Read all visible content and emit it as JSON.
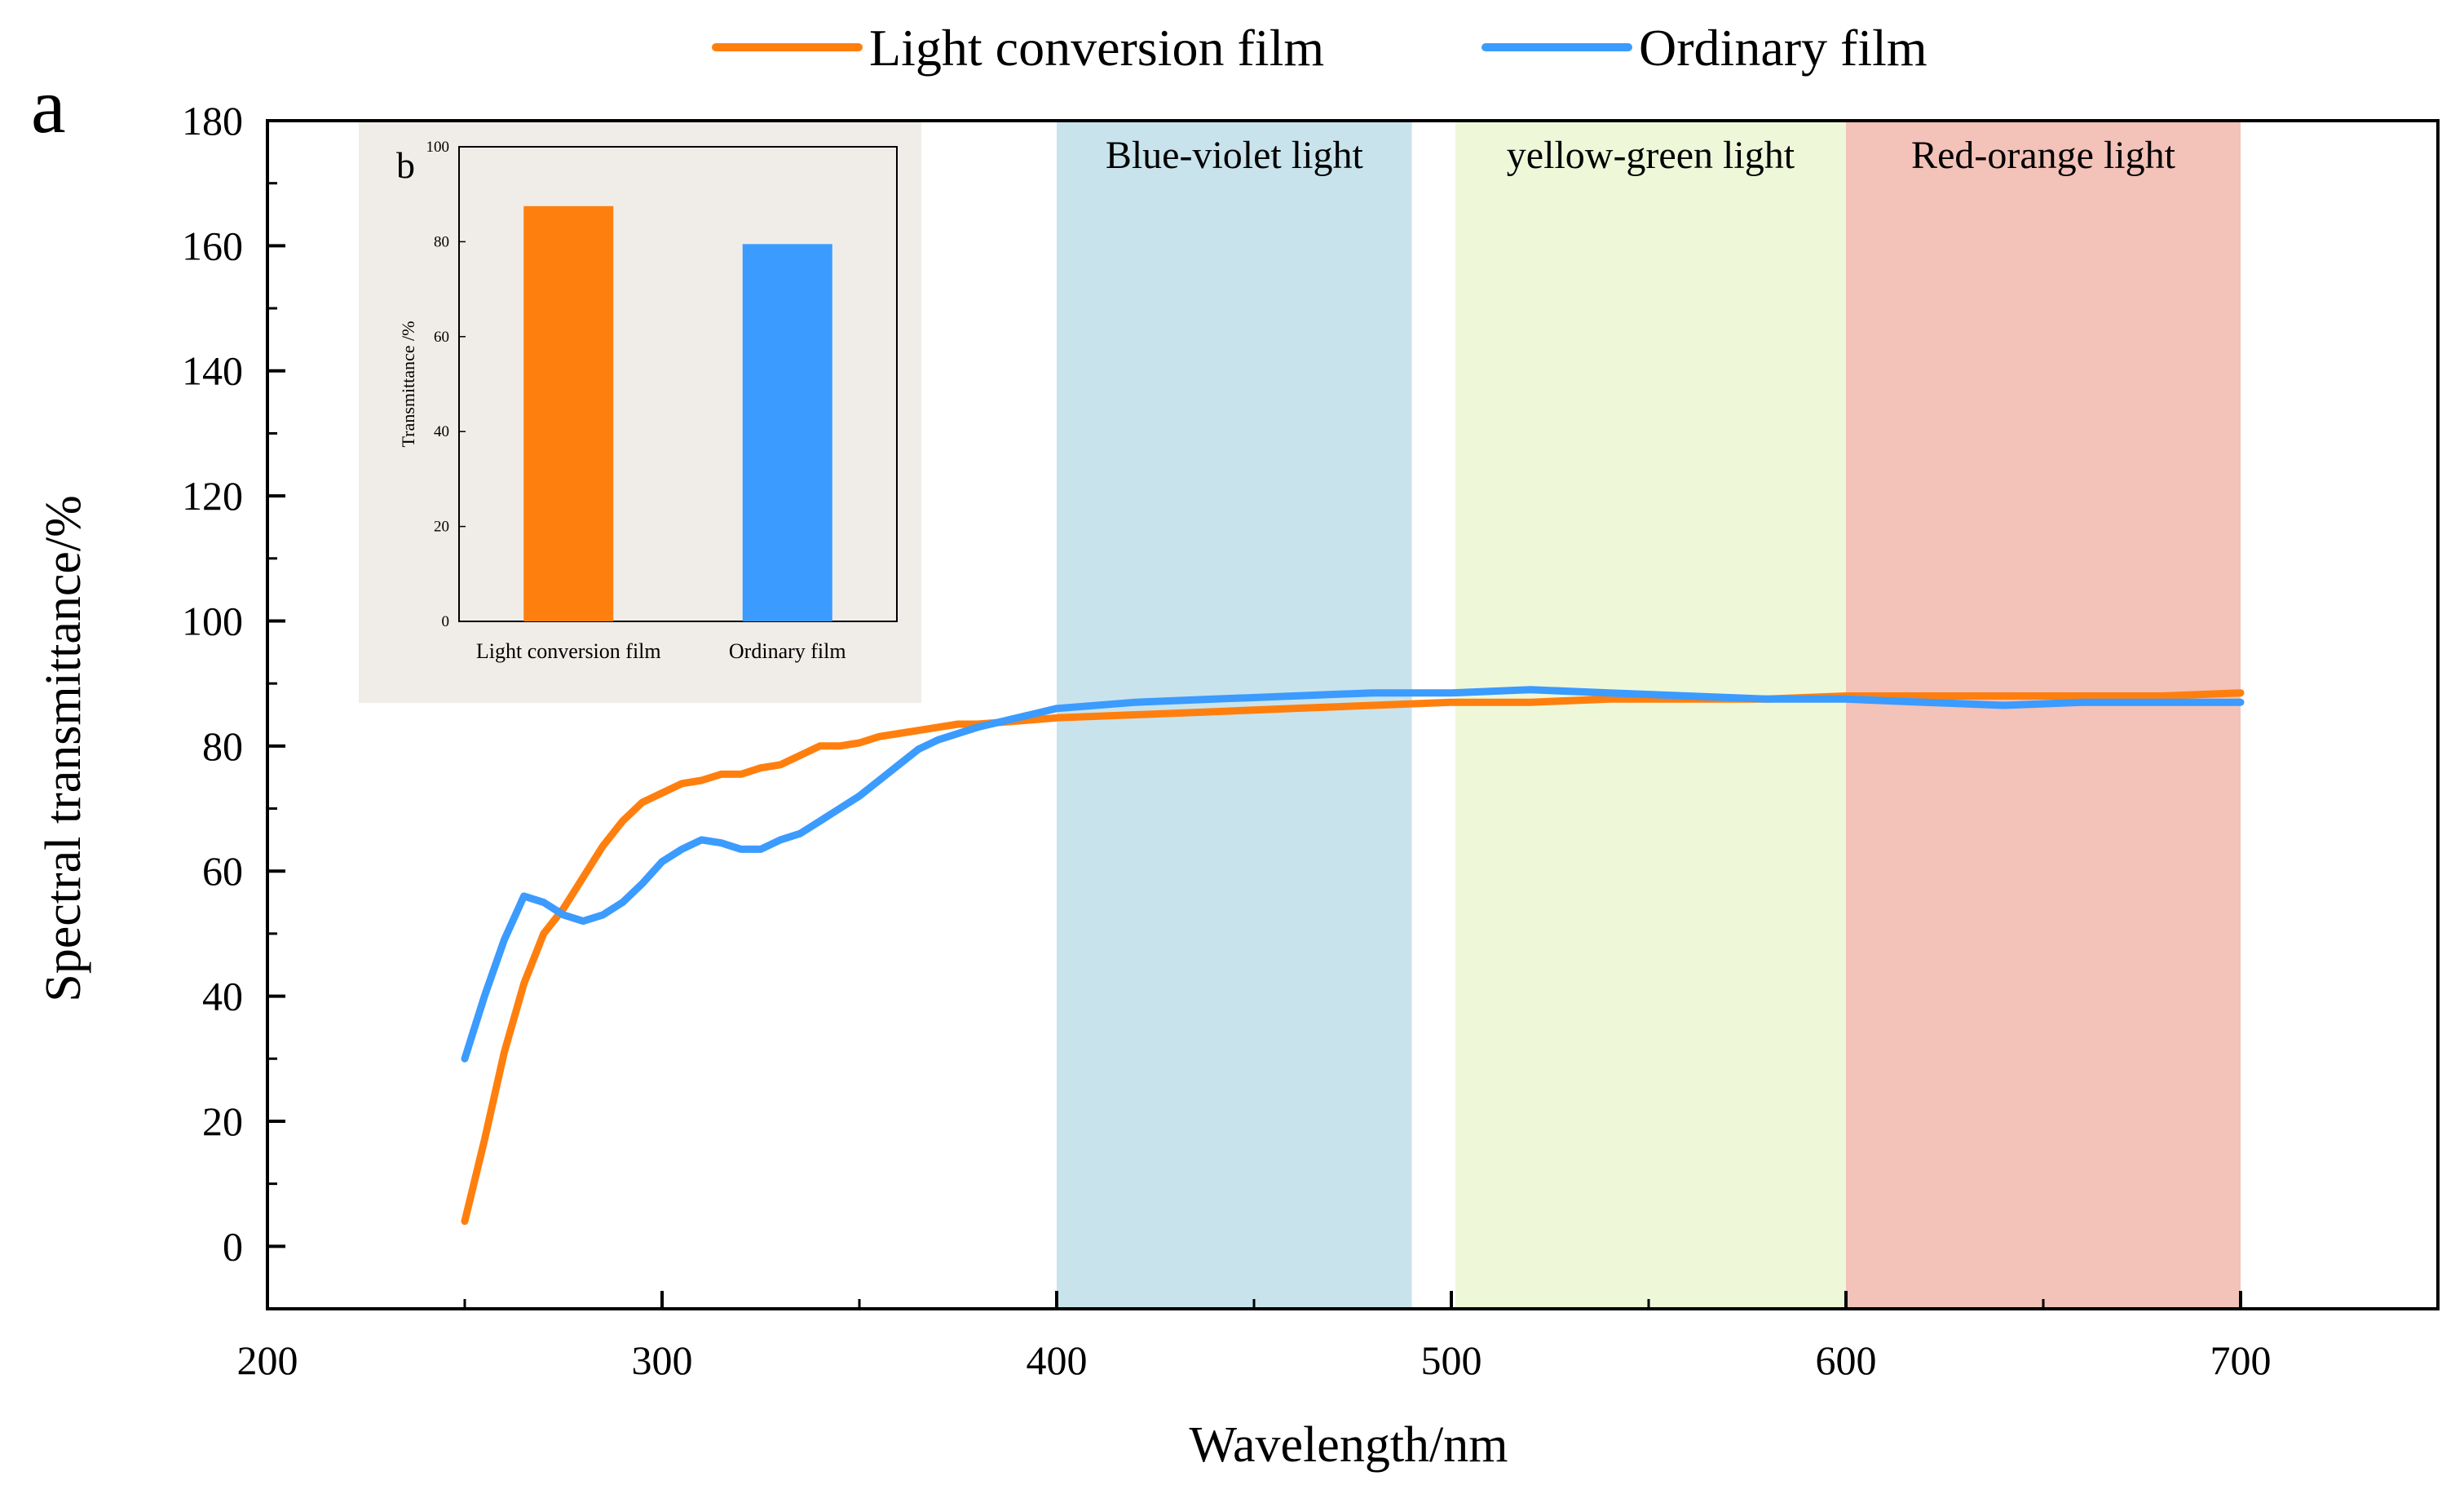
{
  "panel_label_a": "a",
  "panel_label_b": "b",
  "legend": [
    {
      "label": "Light conversion film",
      "color": "#FF7F0E"
    },
    {
      "label": "Ordinary film",
      "color": "#3B9BFF"
    }
  ],
  "bands": [
    {
      "label": "Blue-violet light",
      "from": 400,
      "to": 490,
      "color": "#C9E3EC"
    },
    {
      "label": "yellow-green light",
      "from": 501,
      "to": 600,
      "color": "#EEF8D9"
    },
    {
      "label": "Red-orange light",
      "from": 600,
      "to": 700,
      "color": "#F3C2B8"
    }
  ],
  "chart_data": [
    {
      "type": "line",
      "title": "",
      "xlabel": "Wavelength/nm",
      "ylabel": "Spectral transmittance/%",
      "xlim": [
        200,
        750
      ],
      "ylim": [
        -10,
        180
      ],
      "xticks": [
        200,
        300,
        400,
        500,
        600,
        700
      ],
      "yticks": [
        0,
        20,
        40,
        60,
        80,
        100,
        120,
        140,
        160,
        180
      ],
      "grid": false,
      "legend_position": "top-center",
      "series": [
        {
          "name": "Light conversion film",
          "color": "#FF7F0E",
          "x": [
            250,
            255,
            260,
            265,
            270,
            275,
            280,
            285,
            290,
            295,
            300,
            305,
            310,
            315,
            320,
            325,
            330,
            335,
            340,
            345,
            350,
            355,
            360,
            365,
            370,
            375,
            380,
            390,
            400,
            420,
            440,
            460,
            480,
            500,
            520,
            540,
            560,
            580,
            600,
            620,
            640,
            660,
            680,
            700
          ],
          "y": [
            4,
            17,
            31,
            42,
            50,
            54,
            59,
            64,
            68,
            71,
            72.5,
            74,
            74.5,
            75.5,
            75.5,
            76.5,
            77,
            78.5,
            80,
            80,
            80.5,
            81.5,
            82,
            82.5,
            83,
            83.5,
            83.5,
            84,
            84.5,
            85,
            85.5,
            86,
            86.5,
            87,
            87,
            87.5,
            87.5,
            87.5,
            88,
            88,
            88,
            88,
            88,
            88.5
          ]
        },
        {
          "name": "Ordinary film",
          "color": "#3B9BFF",
          "x": [
            250,
            255,
            260,
            265,
            270,
            275,
            280,
            285,
            290,
            295,
            300,
            305,
            310,
            315,
            320,
            325,
            330,
            335,
            340,
            345,
            350,
            355,
            360,
            365,
            370,
            375,
            380,
            390,
            400,
            420,
            440,
            460,
            480,
            500,
            520,
            540,
            560,
            580,
            600,
            620,
            640,
            660,
            680,
            700
          ],
          "y": [
            30,
            40,
            49,
            56,
            55,
            53,
            52,
            53,
            55,
            58,
            61.5,
            63.5,
            65,
            64.5,
            63.5,
            63.5,
            65,
            66,
            68,
            70,
            72,
            74.5,
            77,
            79.5,
            81,
            82,
            83,
            84.5,
            86,
            87,
            87.5,
            88,
            88.5,
            88.5,
            89,
            88.5,
            88,
            87.5,
            87.5,
            87,
            86.5,
            87,
            87,
            87
          ]
        }
      ]
    },
    {
      "type": "bar",
      "title": "",
      "xlabel": "",
      "ylabel": "Transmittance /%",
      "categories": [
        "Light conversion film",
        "Ordinary film"
      ],
      "values": [
        87.5,
        79.5
      ],
      "colors": [
        "#FF7F0E",
        "#3B9BFF"
      ],
      "ylim": [
        0,
        100
      ],
      "yticks": [
        0,
        20,
        40,
        60,
        80,
        100
      ]
    }
  ]
}
